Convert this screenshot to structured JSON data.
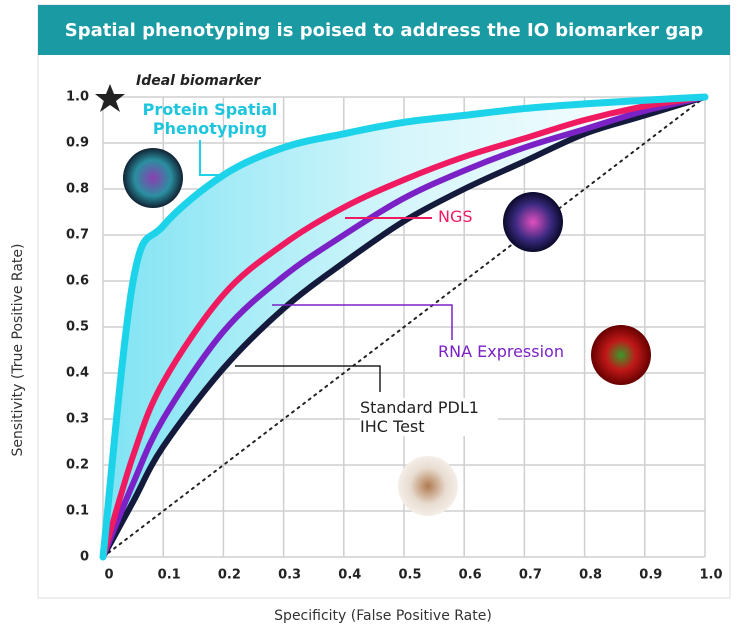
{
  "chart_data": {
    "type": "line",
    "title": "Spatial phenotyping is poised to address the IO biomarker gap",
    "x_label": "Specificity (False Positive Rate)",
    "y_label": "Sensitivity (True Positive Rate)",
    "annotation": "Ideal biomarker",
    "x": [
      0,
      0.05,
      0.1,
      0.2,
      0.3,
      0.4,
      0.5,
      0.6,
      0.7,
      0.8,
      0.9,
      1
    ],
    "series": [
      {
        "name": "Protein Spatial Phenotyping",
        "color": "#1dd3ea",
        "values": [
          0,
          0.6,
          0.72,
          0.83,
          0.89,
          0.92,
          0.945,
          0.96,
          0.975,
          0.985,
          0.993,
          1
        ]
      },
      {
        "name": "NGS",
        "color": "#ef1a5f",
        "values": [
          0,
          0.22,
          0.38,
          0.57,
          0.68,
          0.76,
          0.82,
          0.87,
          0.91,
          0.95,
          0.98,
          1
        ]
      },
      {
        "name": "RNA Expression",
        "color": "#7a22c6",
        "values": [
          0,
          0.16,
          0.3,
          0.49,
          0.61,
          0.7,
          0.78,
          0.84,
          0.89,
          0.93,
          0.97,
          1
        ]
      },
      {
        "name": "Standard PDL1 IHC Test",
        "color": "#141a3c",
        "values": [
          0,
          0.12,
          0.24,
          0.41,
          0.54,
          0.64,
          0.73,
          0.8,
          0.86,
          0.92,
          0.96,
          1
        ]
      }
    ],
    "xlim": [
      0,
      1
    ],
    "ylim": [
      0,
      1
    ],
    "xticks": [
      0,
      0.1,
      0.2,
      0.3,
      0.4,
      0.5,
      0.6,
      0.7,
      0.8,
      0.9,
      {
        "value": 1,
        "label": "1.0"
      }
    ],
    "yticks": [
      0,
      0.1,
      0.2,
      0.3,
      0.4,
      0.5,
      0.6,
      0.7,
      0.8,
      0.9,
      {
        "value": 1,
        "label": "1.0"
      }
    ],
    "grid": true
  }
}
